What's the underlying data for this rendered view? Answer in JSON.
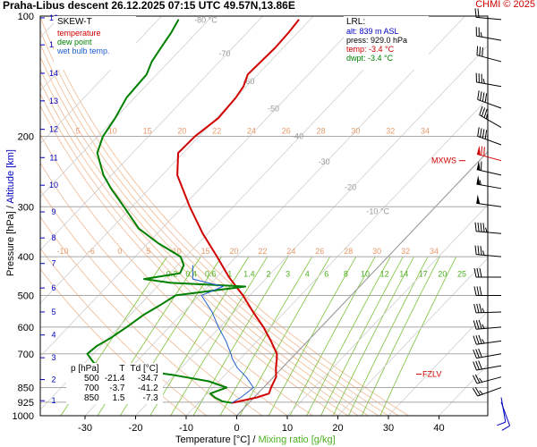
{
  "header": {
    "title": "Praha-Libus   descent   26.12.2025 07:15 UTC  49.57N,13.86E",
    "copyright": "CHMI © 2025"
  },
  "legend": {
    "title": "SKEW-T",
    "items": [
      {
        "label": "temperature",
        "color": "#d00000"
      },
      {
        "label": "dew point",
        "color": "#008000"
      },
      {
        "label": "wet bulb temp.",
        "color": "#2060d0"
      }
    ]
  },
  "lrl": {
    "title": "LRL:",
    "alt": "alt: 839 m ASL",
    "press": "press: 929.0 hPa",
    "temp": "temp: -3.4 °C",
    "dwpt": "dwpt: -3.4 °C"
  },
  "table": {
    "headers": [
      "p [hPa]",
      "T",
      "Td [°C]"
    ],
    "rows": [
      [
        "500",
        "-21.4",
        "-34.7"
      ],
      [
        "700",
        "-3.7",
        "-41.2"
      ],
      [
        "850",
        "1.5",
        "-7.3"
      ]
    ]
  },
  "axes": {
    "ylabel_pressure": "Pressure [hPa]",
    "ylabel_sep": " / ",
    "ylabel_altitude": "Altitude [km]",
    "xlabel_temp": "Temperature [°C]",
    "xlabel_sep": " / ",
    "xlabel_mix": "Mixing ratio [g/kg]"
  },
  "markers": {
    "mxws": "MXWS",
    "fzlv": "FZLV"
  },
  "colors": {
    "temperature": "#d00000",
    "dewpoint": "#008000",
    "wetbulb": "#2060d0",
    "mixing": "#7cc23a",
    "dry_adiabat": "#f0b890",
    "altitude": "#0000c0",
    "isobar": "#a8a8a8"
  },
  "chart_data": {
    "type": "line",
    "chart_kind": "skew-T log-p diagram",
    "pressure_scale": "log",
    "ylim_hpa": [
      1000,
      100
    ],
    "xlim_c": [
      -38,
      46
    ],
    "pressure_ticks": [
      100,
      200,
      300,
      400,
      500,
      600,
      700,
      850,
      925,
      1000
    ],
    "temperature_ticks": [
      -30,
      -20,
      -10,
      0,
      10,
      20,
      30,
      40
    ],
    "altitude_ticks_km": [
      {
        "label": "1",
        "p": 917
      },
      {
        "label": "2",
        "p": 812
      },
      {
        "label": "3",
        "p": 716
      },
      {
        "label": "4",
        "p": 628
      },
      {
        "label": "5",
        "p": 550
      },
      {
        "label": "6",
        "p": 479
      },
      {
        "label": "7",
        "p": 416
      },
      {
        "label": "8",
        "p": 359
      },
      {
        "label": "9",
        "p": 309
      },
      {
        "label": "10",
        "p": 265
      },
      {
        "label": "11",
        "p": 226
      },
      {
        "label": "12",
        "p": 192
      },
      {
        "label": "13",
        "p": 163
      },
      {
        "label": "14",
        "p": 139
      },
      {
        "label": "15",
        "p": 118
      },
      {
        "label": "16",
        "p": 101
      }
    ],
    "isotherm_labels": [
      {
        "label": "-80 °C",
        "t": -80,
        "p": 104
      },
      {
        "label": "-70",
        "t": -70,
        "p": 126
      },
      {
        "label": "-60",
        "t": -60,
        "p": 148
      },
      {
        "label": "-50",
        "t": -50,
        "p": 173
      },
      {
        "label": "-40",
        "t": -40,
        "p": 203
      },
      {
        "label": "-30",
        "t": -30,
        "p": 235
      },
      {
        "label": "-20",
        "t": -20,
        "p": 272
      },
      {
        "label": "-10 °C",
        "t": -10,
        "p": 313
      }
    ],
    "mixing_ratio_gkg": [
      0.2,
      0.4,
      0.6,
      1,
      1.4,
      2,
      3,
      4,
      6,
      8,
      10,
      12,
      14,
      17,
      20,
      25
    ],
    "mixing_ratio_labels": [
      "0.2",
      "0.4",
      "0.6",
      "1",
      "1.4",
      "2",
      "3",
      "4",
      "6",
      "8",
      "10",
      "12",
      "14",
      "17",
      "20",
      "25"
    ],
    "dry_adiabats_theta_c": [
      -10,
      -6,
      0,
      5,
      10,
      15,
      20,
      22,
      24,
      26,
      28,
      30,
      32,
      34
    ],
    "dry_adiabat_labels_upper": [
      "5",
      "10",
      "15",
      "20",
      "22",
      "24",
      "26",
      "28",
      "30",
      "32",
      "34"
    ],
    "dry_adiabat_labels_lower": [
      "-10",
      "-6",
      "0",
      "5",
      "10",
      "15",
      "20",
      "22",
      "24",
      "26",
      "28",
      "30",
      "32",
      "34"
    ],
    "mxws_p": 230,
    "fzlv_p": 787,
    "series": [
      {
        "name": "temperature",
        "points": [
          {
            "p": 929,
            "t": -3.4
          },
          {
            "p": 925,
            "t": -2.8
          },
          {
            "p": 900,
            "t": 0.6
          },
          {
            "p": 880,
            "t": 2.2
          },
          {
            "p": 850,
            "t": 1.5
          },
          {
            "p": 800,
            "t": 0.5
          },
          {
            "p": 760,
            "t": -1.2
          },
          {
            "p": 720,
            "t": -2.8
          },
          {
            "p": 700,
            "t": -3.7
          },
          {
            "p": 650,
            "t": -7.3
          },
          {
            "p": 600,
            "t": -11.4
          },
          {
            "p": 550,
            "t": -16.3
          },
          {
            "p": 500,
            "t": -21.4
          },
          {
            "p": 450,
            "t": -27.6
          },
          {
            "p": 400,
            "t": -33.8
          },
          {
            "p": 350,
            "t": -41.0
          },
          {
            "p": 300,
            "t": -48.6
          },
          {
            "p": 250,
            "t": -57.0
          },
          {
            "p": 220,
            "t": -61.0
          },
          {
            "p": 200,
            "t": -60.8
          },
          {
            "p": 180,
            "t": -59.6
          },
          {
            "p": 160,
            "t": -60.0
          },
          {
            "p": 150,
            "t": -60.6
          },
          {
            "p": 140,
            "t": -62.0
          },
          {
            "p": 130,
            "t": -61.8
          },
          {
            "p": 120,
            "t": -61.6
          },
          {
            "p": 110,
            "t": -61.8
          },
          {
            "p": 102,
            "t": -62.2
          }
        ]
      },
      {
        "name": "dew point",
        "points": [
          {
            "p": 929,
            "t": -3.4
          },
          {
            "p": 920,
            "t": -5.6
          },
          {
            "p": 900,
            "t": -7.8
          },
          {
            "p": 880,
            "t": -9.4
          },
          {
            "p": 850,
            "t": -7.3
          },
          {
            "p": 820,
            "t": -12.0
          },
          {
            "p": 790,
            "t": -20.5
          },
          {
            "p": 760,
            "t": -31.5
          },
          {
            "p": 740,
            "t": -38.0
          },
          {
            "p": 700,
            "t": -41.2
          },
          {
            "p": 670,
            "t": -40.8
          },
          {
            "p": 640,
            "t": -39.6
          },
          {
            "p": 600,
            "t": -38.4
          },
          {
            "p": 560,
            "t": -37.4
          },
          {
            "p": 530,
            "t": -36.0
          },
          {
            "p": 500,
            "t": -34.7
          },
          {
            "p": 475,
            "t": -22.6
          },
          {
            "p": 465,
            "t": -38.0
          },
          {
            "p": 455,
            "t": -44.0
          },
          {
            "p": 440,
            "t": -38.0
          },
          {
            "p": 420,
            "t": -38.8
          },
          {
            "p": 400,
            "t": -41.0
          },
          {
            "p": 370,
            "t": -48.0
          },
          {
            "p": 340,
            "t": -54.6
          },
          {
            "p": 300,
            "t": -61.6
          },
          {
            "p": 270,
            "t": -67.6
          },
          {
            "p": 250,
            "t": -71.6
          },
          {
            "p": 220,
            "t": -77.0
          },
          {
            "p": 200,
            "t": -79.0
          },
          {
            "p": 180,
            "t": -80.0
          },
          {
            "p": 160,
            "t": -81.6
          },
          {
            "p": 140,
            "t": -82.0
          },
          {
            "p": 130,
            "t": -83.4
          },
          {
            "p": 120,
            "t": -84.2
          },
          {
            "p": 110,
            "t": -85.0
          },
          {
            "p": 102,
            "t": -86.0
          }
        ]
      },
      {
        "name": "wet bulb temp.",
        "points": [
          {
            "p": 929,
            "t": -3.4
          },
          {
            "p": 900,
            "t": -2.6
          },
          {
            "p": 850,
            "t": -2.0
          },
          {
            "p": 800,
            "t": -5.4
          },
          {
            "p": 760,
            "t": -8.8
          },
          {
            "p": 720,
            "t": -11.6
          },
          {
            "p": 700,
            "t": -12.8
          },
          {
            "p": 650,
            "t": -16.2
          },
          {
            "p": 600,
            "t": -20.3
          },
          {
            "p": 550,
            "t": -24.4
          },
          {
            "p": 500,
            "t": -29.6
          },
          {
            "p": 475,
            "t": -27.0
          },
          {
            "p": 455,
            "t": -34.4
          },
          {
            "p": 420,
            "t": -37.0
          }
        ]
      }
    ],
    "wind_barbs": [
      {
        "p": 925,
        "dir": 160,
        "kt": 10
      },
      {
        "p": 900,
        "dir": 170,
        "kt": 10
      },
      {
        "p": 850,
        "dir": 250,
        "kt": 25
      },
      {
        "p": 800,
        "dir": 255,
        "kt": 25
      },
      {
        "p": 750,
        "dir": 260,
        "kt": 30
      },
      {
        "p": 700,
        "dir": 260,
        "kt": 30
      },
      {
        "p": 650,
        "dir": 262,
        "kt": 35
      },
      {
        "p": 600,
        "dir": 265,
        "kt": 35
      },
      {
        "p": 550,
        "dir": 268,
        "kt": 35
      },
      {
        "p": 500,
        "dir": 270,
        "kt": 30
      },
      {
        "p": 450,
        "dir": 270,
        "kt": 30
      },
      {
        "p": 400,
        "dir": 275,
        "kt": 35
      },
      {
        "p": 350,
        "dir": 275,
        "kt": 45
      },
      {
        "p": 300,
        "dir": 278,
        "kt": 50
      },
      {
        "p": 270,
        "dir": 280,
        "kt": 55
      },
      {
        "p": 250,
        "dir": 283,
        "kt": 60
      },
      {
        "p": 230,
        "dir": 285,
        "kt": 70
      },
      {
        "p": 210,
        "dir": 290,
        "kt": 45
      },
      {
        "p": 190,
        "dir": 300,
        "kt": 35
      },
      {
        "p": 170,
        "dir": 290,
        "kt": 40
      },
      {
        "p": 150,
        "dir": 280,
        "kt": 35
      },
      {
        "p": 130,
        "dir": 285,
        "kt": 30
      },
      {
        "p": 115,
        "dir": 280,
        "kt": 25
      },
      {
        "p": 102,
        "dir": 275,
        "kt": 20
      }
    ]
  }
}
